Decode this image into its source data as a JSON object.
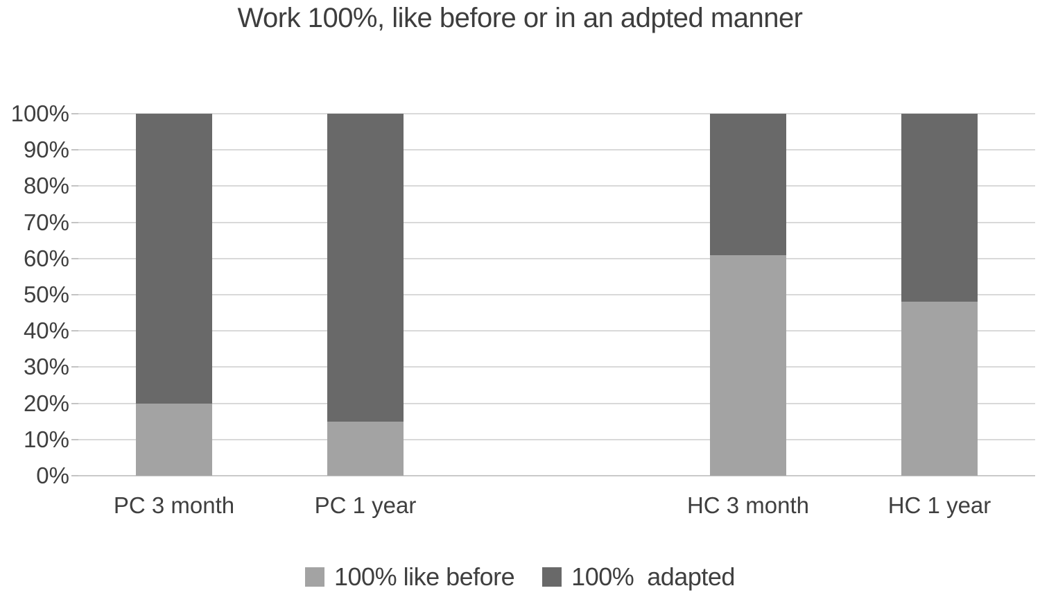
{
  "chart_data": {
    "type": "bar",
    "stacked": true,
    "title": "Work 100%, like before or in an adpted manner",
    "categories": [
      "PC 3 month",
      "PC 1 year",
      "",
      "HC 3 month",
      "HC 1 year"
    ],
    "series": [
      {
        "name": "100% like before",
        "color": "#a3a3a3",
        "values": [
          20,
          15,
          null,
          61,
          48
        ]
      },
      {
        "name": "100%  adapted",
        "color": "#696969",
        "values": [
          80,
          85,
          null,
          39,
          52
        ]
      }
    ],
    "ylim": [
      0,
      100
    ],
    "y_tick_labels": [
      "0%",
      "10%",
      "20%",
      "30%",
      "40%",
      "50%",
      "60%",
      "70%",
      "80%",
      "90%",
      "100%"
    ],
    "grid": "horizontal",
    "legend_position": "bottom"
  }
}
